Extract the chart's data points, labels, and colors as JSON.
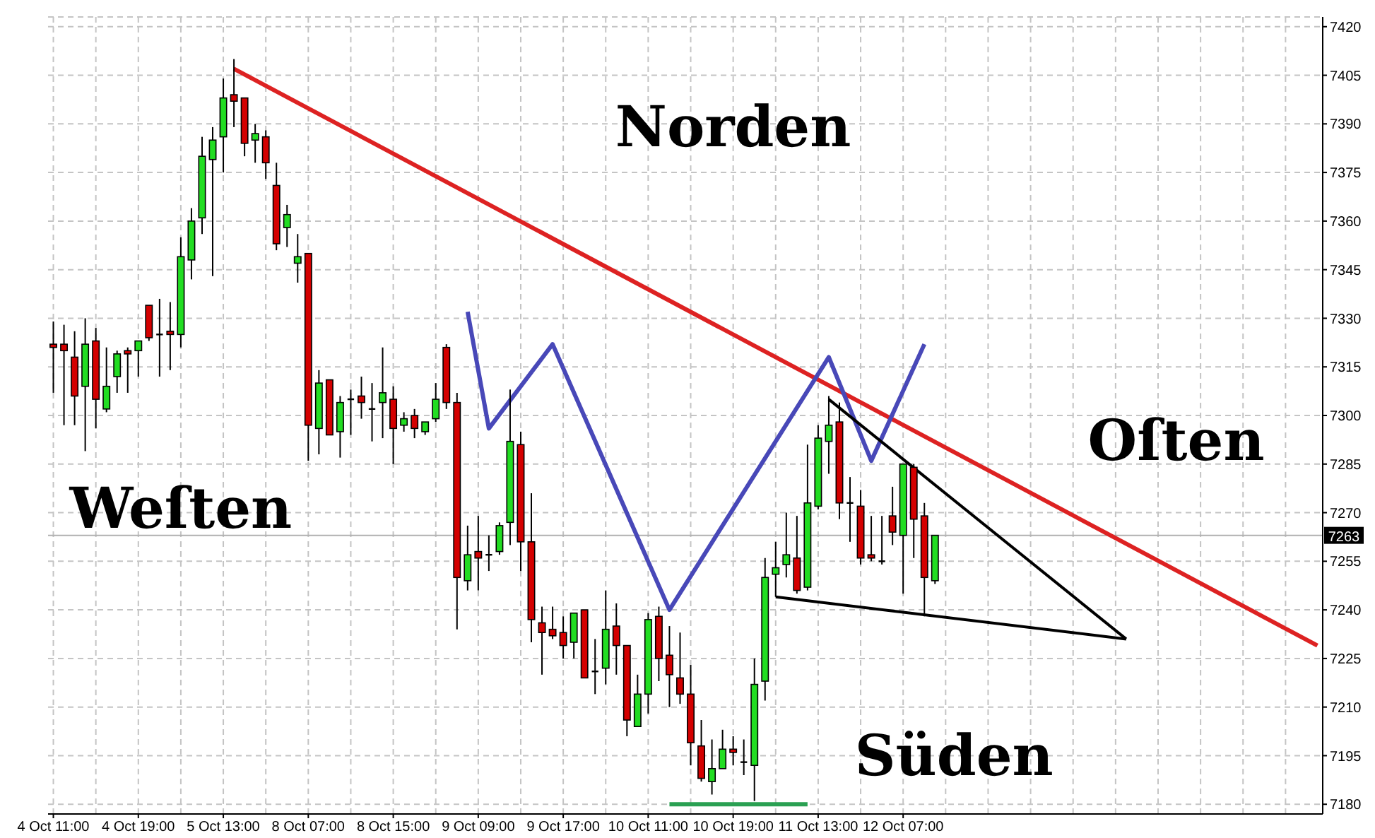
{
  "chart_data": {
    "type": "candlestick",
    "categories": [
      "4 Oct 11:00",
      null,
      null,
      null,
      null,
      null,
      null,
      null,
      "4 Oct 19:00",
      null,
      null,
      null,
      null,
      null,
      null,
      null,
      "5 Oct 13:00",
      null,
      null,
      null,
      null,
      null,
      null,
      null,
      "8 Oct 07:00",
      null,
      null,
      null,
      null,
      null,
      null,
      null,
      "8 Oct 15:00",
      null,
      null,
      null,
      null,
      null,
      null,
      null,
      "9 Oct 09:00",
      null,
      null,
      null,
      null,
      null,
      null,
      null,
      "9 Oct 17:00",
      null,
      null,
      null,
      null,
      null,
      null,
      null,
      "10 Oct 11:00",
      null,
      null,
      null,
      null,
      null,
      null,
      null,
      "10 Oct 19:00",
      null,
      null,
      null,
      null,
      null,
      null,
      null,
      "11 Oct 13:00",
      null,
      null,
      null,
      null,
      null,
      null,
      null,
      "12 Oct 07:00",
      null,
      null,
      null,
      null,
      null,
      null,
      null,
      null,
      null,
      null,
      null,
      null,
      null,
      null,
      null,
      null,
      null,
      null,
      null,
      null,
      null,
      null,
      null,
      null,
      null,
      null,
      null,
      null,
      null,
      null,
      null,
      null,
      null,
      null,
      null,
      null,
      null,
      null,
      null
    ],
    "ylim": [
      7177,
      7423
    ],
    "yticks": [
      7180,
      7195,
      7210,
      7225,
      7240,
      7255,
      7270,
      7285,
      7300,
      7315,
      7330,
      7345,
      7360,
      7375,
      7390,
      7405,
      7420
    ],
    "grid": true,
    "series": [
      {
        "ohlc": [
          [
            7322,
            7329,
            7307,
            7321
          ],
          [
            7322,
            7328,
            7297,
            7320
          ],
          [
            7318,
            7326,
            7297,
            7306
          ],
          [
            7309,
            7330,
            7289,
            7322
          ],
          [
            7323,
            7327,
            7296,
            7305
          ],
          [
            7302,
            7321,
            7301,
            7309
          ],
          [
            7312,
            7320,
            7307,
            7319
          ],
          [
            7320,
            7321,
            7307,
            7319
          ],
          [
            7320,
            7323,
            7312,
            7323
          ],
          [
            7334,
            7334,
            7323,
            7324
          ],
          [
            7325,
            7336,
            7312,
            7325
          ],
          [
            7326,
            7335,
            7314,
            7325
          ],
          [
            7325,
            7355,
            7321,
            7349
          ],
          [
            7348,
            7364,
            7342,
            7360
          ],
          [
            7361,
            7386,
            7356,
            7380
          ],
          [
            7379,
            7389,
            7343,
            7385
          ],
          [
            7386,
            7404,
            7375,
            7398
          ],
          [
            7399,
            7410,
            7389,
            7397
          ],
          [
            7398,
            7398,
            7380,
            7384
          ],
          [
            7385,
            7390,
            7378,
            7387
          ],
          [
            7386,
            7388,
            7373,
            7378
          ],
          [
            7371,
            7378,
            7351,
            7353
          ],
          [
            7358,
            7365,
            7352,
            7362
          ],
          [
            7347,
            7356,
            7341,
            7349
          ],
          [
            7350,
            7350,
            7286,
            7297
          ],
          [
            7296,
            7314,
            7288,
            7310
          ],
          [
            7311,
            7311,
            7294,
            7294
          ],
          [
            7295,
            7306,
            7287,
            7304
          ],
          [
            7305,
            7308,
            7294,
            7305
          ],
          [
            7306,
            7312,
            7299,
            7304
          ],
          [
            7302,
            7310,
            7292,
            7302
          ],
          [
            7304,
            7321,
            7293,
            7307
          ],
          [
            7305,
            7309,
            7285,
            7296
          ],
          [
            7297,
            7301,
            7295,
            7299
          ],
          [
            7300,
            7302,
            7293,
            7296
          ],
          [
            7295,
            7298,
            7294,
            7298
          ],
          [
            7299,
            7310,
            7298,
            7305
          ],
          [
            7321,
            7322,
            7302,
            7304
          ],
          [
            7304,
            7307,
            7234,
            7250
          ],
          [
            7249,
            7266,
            7246,
            7257
          ],
          [
            7258,
            7269,
            7246,
            7256
          ],
          [
            7257,
            7263,
            7252,
            7257
          ],
          [
            7258,
            7267,
            7257,
            7266
          ],
          [
            7267,
            7308,
            7260,
            7292
          ],
          [
            7291,
            7295,
            7252,
            7261
          ],
          [
            7261,
            7276,
            7230,
            7237
          ],
          [
            7236,
            7241,
            7220,
            7233
          ],
          [
            7234,
            7241,
            7231,
            7232
          ],
          [
            7233,
            7238,
            7225,
            7229
          ],
          [
            7230,
            7239,
            7225,
            7239
          ],
          [
            7240,
            7240,
            7219,
            7219
          ],
          [
            7221,
            7231,
            7214,
            7221
          ],
          [
            7222,
            7246,
            7217,
            7234
          ],
          [
            7235,
            7242,
            7220,
            7229
          ],
          [
            7229,
            7229,
            7201,
            7206
          ],
          [
            7204,
            7220,
            7204,
            7214
          ],
          [
            7214,
            7239,
            7208,
            7237
          ],
          [
            7238,
            7241,
            7218,
            7225
          ],
          [
            7226,
            7235,
            7210,
            7220
          ],
          [
            7219,
            7233,
            7211,
            7214
          ],
          [
            7214,
            7223,
            7192,
            7199
          ],
          [
            7198,
            7206,
            7187,
            7188
          ],
          [
            7187,
            7200,
            7183,
            7191
          ],
          [
            7191,
            7203,
            7191,
            7197
          ],
          [
            7197,
            7201,
            7192,
            7196
          ],
          [
            7193,
            7200,
            7189,
            7193
          ],
          [
            7192,
            7225,
            7181,
            7217
          ],
          [
            7218,
            7256,
            7212,
            7250
          ],
          [
            7251,
            7261,
            7244,
            7253
          ],
          [
            7254,
            7270,
            7250,
            7257
          ],
          [
            7256,
            7269,
            7245,
            7246
          ],
          [
            7247,
            7291,
            7246,
            7273
          ],
          [
            7272,
            7297,
            7271,
            7293
          ],
          [
            7292,
            7306,
            7282,
            7297
          ],
          [
            7298,
            7304,
            7268,
            7273
          ],
          [
            7273,
            7281,
            7261,
            7273
          ],
          [
            7272,
            7277,
            7254,
            7256
          ],
          [
            7257,
            7269,
            7255,
            7256
          ],
          [
            7255,
            7269,
            7254,
            7255
          ],
          [
            7269,
            7278,
            7260,
            7264
          ],
          [
            7263,
            7285,
            7245,
            7285
          ],
          [
            7284,
            7285,
            7256,
            7268
          ],
          [
            7269,
            7273,
            7238,
            7250
          ],
          [
            7249,
            7263,
            7248,
            7263
          ],
          null,
          null,
          null,
          null,
          null,
          null,
          null,
          null,
          null,
          null,
          null,
          null,
          null,
          null,
          null,
          null,
          null,
          null,
          null,
          null,
          null,
          null,
          null,
          null,
          null,
          null,
          null,
          null,
          null,
          null,
          null,
          null,
          null,
          null,
          null,
          null
        ],
        "colors": [
          "#d40000",
          "#d40000",
          "#d40000",
          "#22dd22",
          "#d40000",
          "#22dd22",
          "#22dd22",
          "#d40000",
          "#22dd22",
          "#d40000",
          "#000000",
          "#d40000",
          "#22dd22",
          "#22dd22",
          "#22dd22",
          "#22dd22",
          "#22dd22",
          "#d40000",
          "#d40000",
          "#22dd22",
          "#d40000",
          "#d40000",
          "#22dd22",
          "#22dd22",
          "#d40000",
          "#22dd22",
          "#d40000",
          "#22dd22",
          "#000000",
          "#d40000",
          "#000000",
          "#22dd22",
          "#d40000",
          "#22dd22",
          "#d40000",
          "#22dd22",
          "#22dd22",
          "#d40000",
          "#d40000",
          "#22dd22",
          "#d40000",
          "#000000",
          "#22dd22",
          "#22dd22",
          "#d40000",
          "#d40000",
          "#d40000",
          "#d40000",
          "#d40000",
          "#22dd22",
          "#d40000",
          "#000000",
          "#22dd22",
          "#d40000",
          "#d40000",
          "#22dd22",
          "#22dd22",
          "#d40000",
          "#d40000",
          "#d40000",
          "#d40000",
          "#d40000",
          "#22dd22",
          "#22dd22",
          "#d40000",
          "#000000",
          "#22dd22",
          "#22dd22",
          "#22dd22",
          "#22dd22",
          "#d40000",
          "#22dd22",
          "#22dd22",
          "#22dd22",
          "#d40000",
          "#000000",
          "#d40000",
          "#d40000",
          "#000000",
          "#d40000",
          "#22dd22",
          "#d40000",
          "#d40000",
          "#22dd22",
          null,
          null,
          null,
          null,
          null,
          null,
          null,
          null,
          null,
          null,
          null,
          null,
          null,
          null,
          null,
          null,
          null,
          null,
          null,
          null,
          null,
          null,
          null,
          null,
          null,
          null,
          null,
          null,
          null,
          null,
          null,
          null,
          null,
          null,
          null,
          null
        ]
      },
      {
        "type": "line",
        "color": "#dd2222",
        "values": [
          null,
          null,
          null,
          null,
          null,
          null,
          null,
          null,
          null,
          null,
          null,
          null,
          null,
          null,
          null,
          null,
          null,
          7407,
          null,
          null,
          null,
          null,
          null,
          null,
          null,
          null,
          null,
          null,
          null,
          null,
          null,
          null,
          null,
          null,
          null,
          null,
          null,
          null,
          null,
          null,
          null,
          null,
          null,
          null,
          null,
          null,
          null,
          null,
          null,
          null,
          null,
          null,
          null,
          null,
          null,
          null,
          null,
          null,
          null,
          null,
          null,
          null,
          null,
          null,
          null,
          null,
          null,
          null,
          null,
          null,
          null,
          null,
          null,
          null,
          null,
          null,
          null,
          null,
          null,
          null,
          null,
          null,
          null,
          null,
          null,
          null,
          null,
          null,
          null,
          null,
          null,
          null,
          null,
          null,
          null,
          null,
          null,
          null,
          null,
          null,
          null,
          null,
          null,
          null,
          null,
          null,
          null,
          null,
          null,
          null,
          null,
          null,
          null,
          null,
          null,
          null,
          null,
          null,
          null,
          7229
        ]
      },
      {
        "type": "line",
        "color": "#4848b8",
        "values": [
          null,
          null,
          null,
          null,
          null,
          null,
          null,
          null,
          null,
          null,
          null,
          null,
          null,
          null,
          null,
          null,
          null,
          null,
          null,
          null,
          null,
          null,
          null,
          null,
          null,
          null,
          null,
          null,
          null,
          null,
          null,
          null,
          null,
          null,
          null,
          null,
          null,
          null,
          null,
          7332,
          null,
          7296,
          null,
          null,
          null,
          null,
          null,
          7322,
          null,
          null,
          null,
          null,
          null,
          null,
          null,
          null,
          null,
          null,
          7240,
          null,
          null,
          null,
          null,
          null,
          null,
          null,
          null,
          null,
          null,
          null,
          null,
          null,
          null,
          7318,
          null,
          null,
          null,
          7286,
          null,
          null,
          null,
          null,
          7322,
          null,
          null,
          null,
          null,
          null,
          null,
          null,
          null,
          null,
          null,
          null,
          null,
          null,
          null,
          null,
          null,
          null,
          null,
          null,
          null,
          null,
          null,
          null,
          null,
          null,
          null,
          null,
          null,
          null,
          null,
          null,
          null,
          null,
          null,
          null,
          null,
          null
        ]
      },
      {
        "type": "line",
        "color": "#000000",
        "values": [
          null,
          null,
          null,
          null,
          null,
          null,
          null,
          null,
          null,
          null,
          null,
          null,
          null,
          null,
          null,
          null,
          null,
          null,
          null,
          null,
          null,
          null,
          null,
          null,
          null,
          null,
          null,
          null,
          null,
          null,
          null,
          null,
          null,
          null,
          null,
          null,
          null,
          null,
          null,
          null,
          null,
          null,
          null,
          null,
          null,
          null,
          null,
          null,
          null,
          null,
          null,
          null,
          null,
          null,
          null,
          null,
          null,
          null,
          null,
          null,
          null,
          null,
          null,
          null,
          null,
          null,
          null,
          null,
          null,
          null,
          null,
          null,
          null,
          7305,
          null,
          null,
          null,
          null,
          null,
          null,
          null,
          null,
          null,
          null,
          null,
          null,
          null,
          null,
          null,
          null,
          null,
          null,
          null,
          null,
          null,
          null,
          null,
          null,
          null,
          null,
          null,
          7231,
          null,
          null,
          null,
          null,
          null,
          null,
          null,
          null,
          null,
          null,
          null,
          null,
          null,
          null,
          null,
          null,
          null,
          null
        ]
      },
      {
        "type": "line",
        "color": "#000000",
        "values": [
          null,
          null,
          null,
          null,
          null,
          null,
          null,
          null,
          null,
          null,
          null,
          null,
          null,
          null,
          null,
          null,
          null,
          null,
          null,
          null,
          null,
          null,
          null,
          null,
          null,
          null,
          null,
          null,
          null,
          null,
          null,
          null,
          null,
          null,
          null,
          null,
          null,
          null,
          null,
          null,
          null,
          null,
          null,
          null,
          null,
          null,
          null,
          null,
          null,
          null,
          null,
          null,
          null,
          null,
          null,
          null,
          null,
          null,
          null,
          null,
          null,
          null,
          null,
          null,
          null,
          null,
          null,
          null,
          7244,
          null,
          null,
          null,
          null,
          null,
          null,
          null,
          null,
          null,
          null,
          null,
          null,
          null,
          null,
          null,
          null,
          null,
          null,
          null,
          null,
          null,
          null,
          null,
          null,
          null,
          null,
          null,
          null,
          null,
          null,
          null,
          null,
          7231,
          null,
          null,
          null,
          null,
          null,
          null,
          null,
          null,
          null,
          null,
          null,
          null,
          null,
          null,
          null,
          null,
          null,
          null
        ]
      },
      {
        "type": "line",
        "color": "#2aa052",
        "values": [
          null,
          null,
          null,
          null,
          null,
          null,
          null,
          null,
          null,
          null,
          null,
          null,
          null,
          null,
          null,
          null,
          null,
          null,
          null,
          null,
          null,
          null,
          null,
          null,
          null,
          null,
          null,
          null,
          null,
          null,
          null,
          null,
          null,
          null,
          null,
          null,
          null,
          null,
          null,
          null,
          null,
          null,
          null,
          null,
          null,
          null,
          null,
          null,
          null,
          null,
          null,
          null,
          null,
          null,
          null,
          null,
          null,
          null,
          7180,
          null,
          null,
          null,
          null,
          null,
          null,
          null,
          null,
          null,
          null,
          null,
          null,
          7180,
          null,
          null,
          null,
          null,
          null,
          null,
          null,
          null,
          null,
          null,
          null,
          null,
          null,
          null,
          null,
          null,
          null,
          null,
          null,
          null,
          null,
          null,
          null,
          null,
          null,
          null,
          null,
          null,
          null,
          null,
          null,
          null,
          null,
          null,
          null,
          null,
          null,
          null,
          null,
          null,
          null,
          null,
          null,
          null,
          null,
          null,
          null,
          null
        ]
      }
    ],
    "ref_lines": [
      {
        "axis": "y",
        "value": 7263,
        "label": "7263",
        "color": "#b0b0b0"
      }
    ],
    "annotations": [
      "Norden",
      "Weſten",
      "Oſten",
      "Süden"
    ]
  }
}
